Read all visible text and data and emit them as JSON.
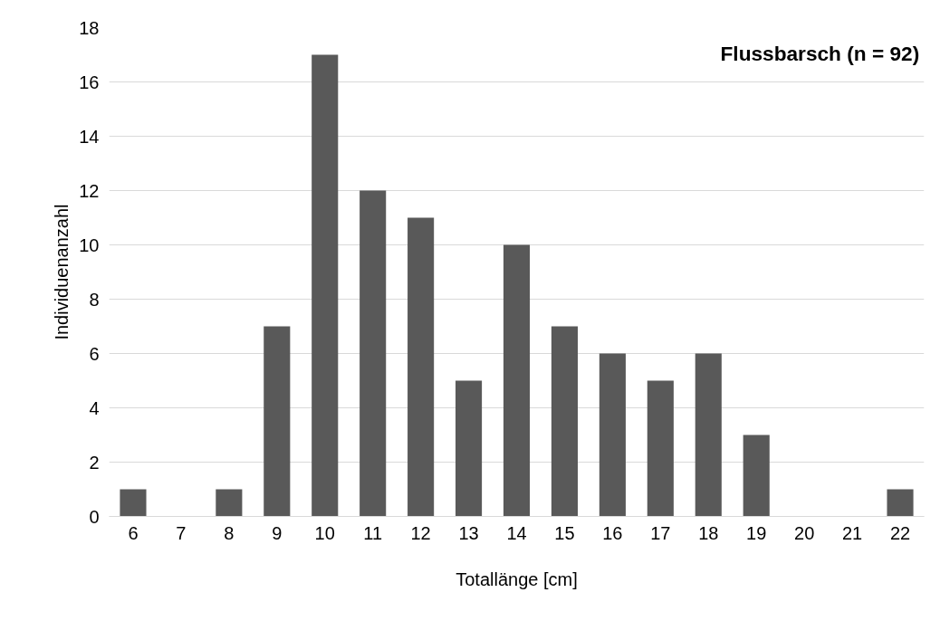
{
  "chart_data": {
    "type": "bar",
    "title": "Flussbarsch (n = 92)",
    "xlabel": "Totallänge [cm]",
    "ylabel": "Individuenanzahl",
    "categories": [
      "6",
      "7",
      "8",
      "9",
      "10",
      "11",
      "12",
      "13",
      "14",
      "15",
      "16",
      "17",
      "18",
      "19",
      "20",
      "21",
      "22"
    ],
    "values": [
      1,
      0,
      1,
      7,
      17,
      12,
      11,
      5,
      10,
      7,
      6,
      5,
      6,
      3,
      0,
      0,
      1
    ],
    "color": "#595959",
    "ylim": [
      0,
      18
    ],
    "yticks": [
      0,
      2,
      4,
      6,
      8,
      10,
      12,
      14,
      16,
      18
    ],
    "grid": "y"
  }
}
